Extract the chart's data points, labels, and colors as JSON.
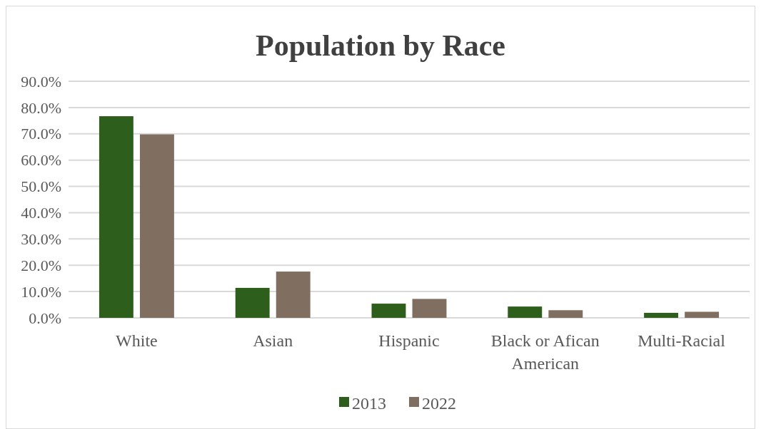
{
  "chart_data": {
    "type": "bar",
    "title": "Population by Race",
    "categories": [
      "White",
      "Asian",
      "Hispanic",
      "Black or Afican American",
      "Multi-Racial"
    ],
    "series": [
      {
        "name": "2013",
        "color": "#2e5e1c",
        "values": [
          76.7,
          11.4,
          5.4,
          4.3,
          1.9
        ]
      },
      {
        "name": "2022",
        "color": "#806e61",
        "values": [
          69.8,
          17.6,
          7.2,
          2.9,
          2.3
        ]
      }
    ],
    "ylim": [
      0,
      90
    ],
    "yticks": [
      {
        "value": 0,
        "label": "0.0%"
      },
      {
        "value": 10,
        "label": "10.0%"
      },
      {
        "value": 20,
        "label": "20.0%"
      },
      {
        "value": 30,
        "label": "30.0%"
      },
      {
        "value": 40,
        "label": "40.0%"
      },
      {
        "value": 50,
        "label": "50.0%"
      },
      {
        "value": 60,
        "label": "60.0%"
      },
      {
        "value": 70,
        "label": "70.0%"
      },
      {
        "value": 80,
        "label": "80.0%"
      },
      {
        "value": 90,
        "label": "90.0%"
      }
    ],
    "grid": "y",
    "legend": "bottom"
  }
}
